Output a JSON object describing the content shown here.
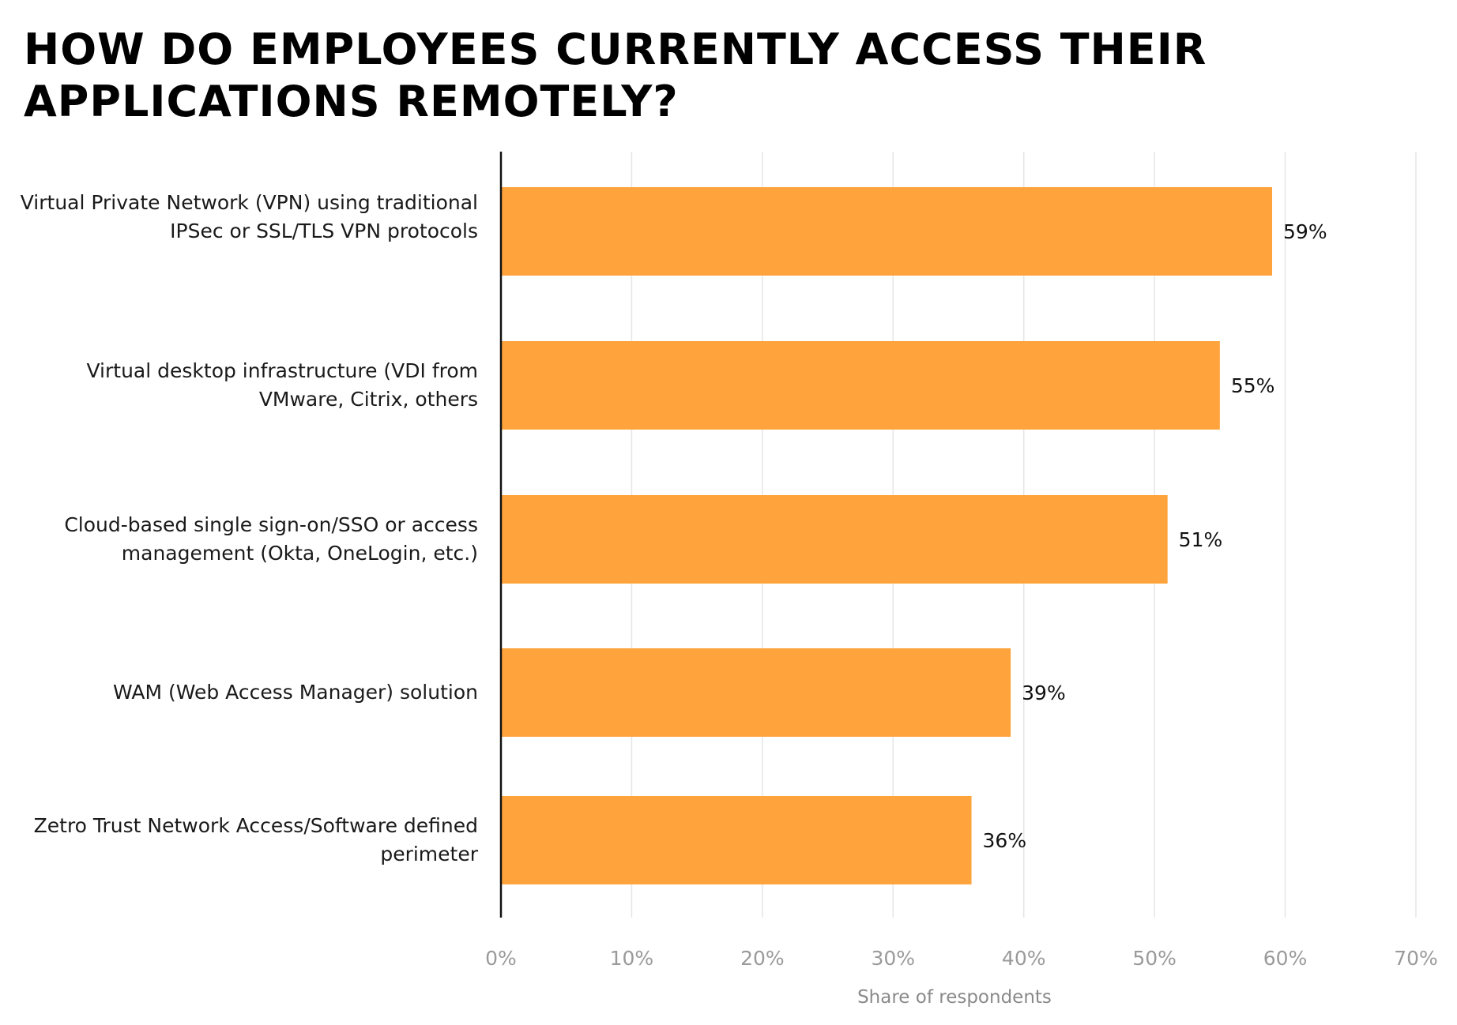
{
  "chart_data": {
    "type": "bar",
    "orientation": "horizontal",
    "title": "HOW DO EMPLOYEES CURRENTLY ACCESS THEIR APPLICATIONS REMOTELY?",
    "xlabel": "Share of respondents",
    "ylabel": "",
    "xlim": [
      0,
      70
    ],
    "xticks": [
      "0%",
      "10%",
      "20%",
      "30%",
      "40%",
      "50%",
      "60%",
      "70%"
    ],
    "grid": true,
    "categories": [
      "Virtual Private Network (VPN) using traditional IPSec or SSL/TLS VPN protocols",
      "Virtual desktop infrastructure (VDI from VMware, Citrix, others",
      "Cloud-based single sign-on/SSO or access management (Okta, OneLogin, etc.)",
      "WAM (Web Access Manager) solution",
      "Zetro Trust Network Access/Software defined perimeter"
    ],
    "values": [
      59,
      55,
      51,
      39,
      36
    ],
    "value_labels": [
      "59%",
      "55%",
      "51%",
      "39%",
      "36%"
    ],
    "bar_color": "#FFA33C"
  }
}
